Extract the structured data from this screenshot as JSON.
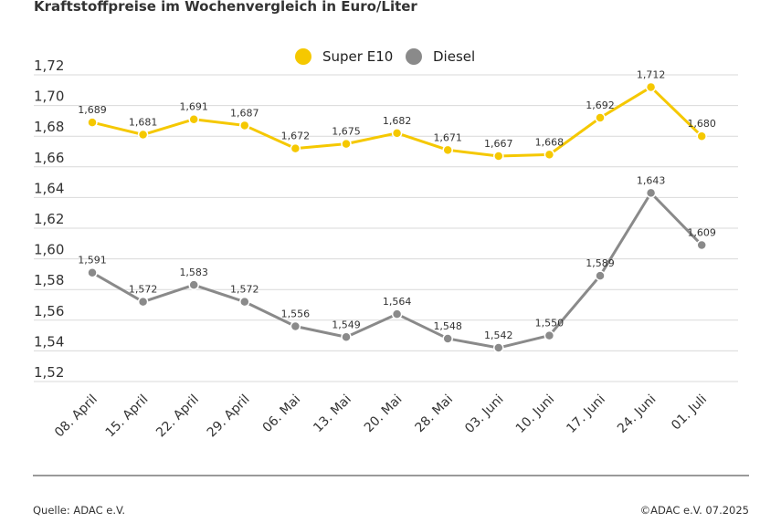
{
  "title": "Kraftstoffpreise im Wochenvergleich in Euro/Liter",
  "footer": {
    "source": "Quelle: ADAC e.V.",
    "copyright": "©ADAC e.V. 07.2025"
  },
  "chart_data": {
    "type": "line",
    "categories": [
      "08. April",
      "15. April",
      "22. April",
      "29. April",
      "06. Mai",
      "13. Mai",
      "20. Mai",
      "28. Mai",
      "03. Juni",
      "10. Juni",
      "17. Juni",
      "24. Juni",
      "01. Juli"
    ],
    "series": [
      {
        "name": "Super E10",
        "color": "#f5c800",
        "values": [
          1.689,
          1.681,
          1.691,
          1.687,
          1.672,
          1.675,
          1.682,
          1.671,
          1.667,
          1.668,
          1.692,
          1.712,
          1.68
        ],
        "labels": [
          "1,689",
          "1,681",
          "1,691",
          "1,687",
          "1,672",
          "1,675",
          "1,682",
          "1,671",
          "1,667",
          "1,668",
          "1,692",
          "1,712",
          "1,680"
        ]
      },
      {
        "name": "Diesel",
        "color": "#8a8a8a",
        "values": [
          1.591,
          1.572,
          1.583,
          1.572,
          1.556,
          1.549,
          1.564,
          1.548,
          1.542,
          1.55,
          1.589,
          1.643,
          1.609
        ],
        "labels": [
          "1,591",
          "1,572",
          "1,583",
          "1,572",
          "1,556",
          "1,549",
          "1,564",
          "1,548",
          "1,542",
          "1,550",
          "1,589",
          "1,643",
          "1,609"
        ]
      }
    ],
    "ylim": [
      1.52,
      1.72
    ],
    "yticks": [
      1.72,
      1.7,
      1.68,
      1.66,
      1.64,
      1.62,
      1.6,
      1.58,
      1.56,
      1.54,
      1.52
    ],
    "ytick_labels": [
      "1,72",
      "1,70",
      "1,68",
      "1,66",
      "1,64",
      "1,62",
      "1,60",
      "1,58",
      "1,56",
      "1,54",
      "1,52"
    ],
    "grid": true,
    "legend_position": "top-center",
    "gridline_color": "#d9d9d9"
  }
}
